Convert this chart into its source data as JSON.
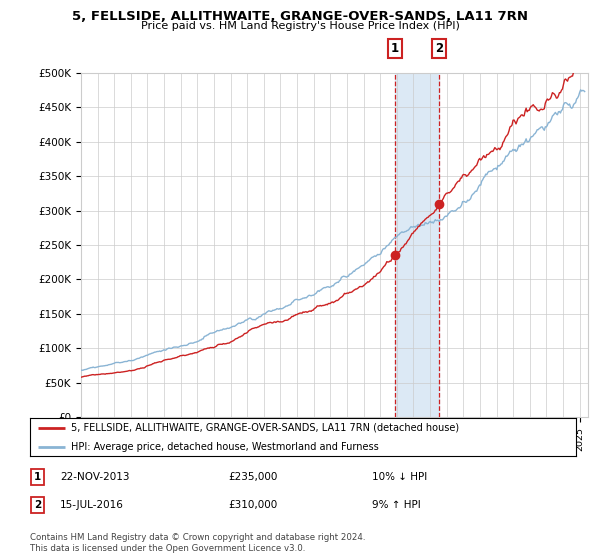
{
  "title": "5, FELLSIDE, ALLITHWAITE, GRANGE-OVER-SANDS, LA11 7RN",
  "subtitle": "Price paid vs. HM Land Registry's House Price Index (HPI)",
  "ylim": [
    0,
    500000
  ],
  "xlim_start": 1995.0,
  "xlim_end": 2025.5,
  "sale1_x": 2013.896,
  "sale1_y": 235000,
  "sale2_x": 2016.537,
  "sale2_y": 310000,
  "sale1_date": "22-NOV-2013",
  "sale1_price": "£235,000",
  "sale1_hpi": "10% ↓ HPI",
  "sale2_date": "15-JUL-2016",
  "sale2_price": "£310,000",
  "sale2_hpi": "9% ↑ HPI",
  "legend_line1": "5, FELLSIDE, ALLITHWAITE, GRANGE-OVER-SANDS, LA11 7RN (detached house)",
  "legend_line2": "HPI: Average price, detached house, Westmorland and Furness",
  "footer": "Contains HM Land Registry data © Crown copyright and database right 2024.\nThis data is licensed under the Open Government Licence v3.0.",
  "hpi_color": "#8ab4d4",
  "price_color": "#cc2222",
  "shade_color": "#dce9f5",
  "vline_color": "#cc2222",
  "bg_color": "#ffffff",
  "grid_color": "#cccccc"
}
